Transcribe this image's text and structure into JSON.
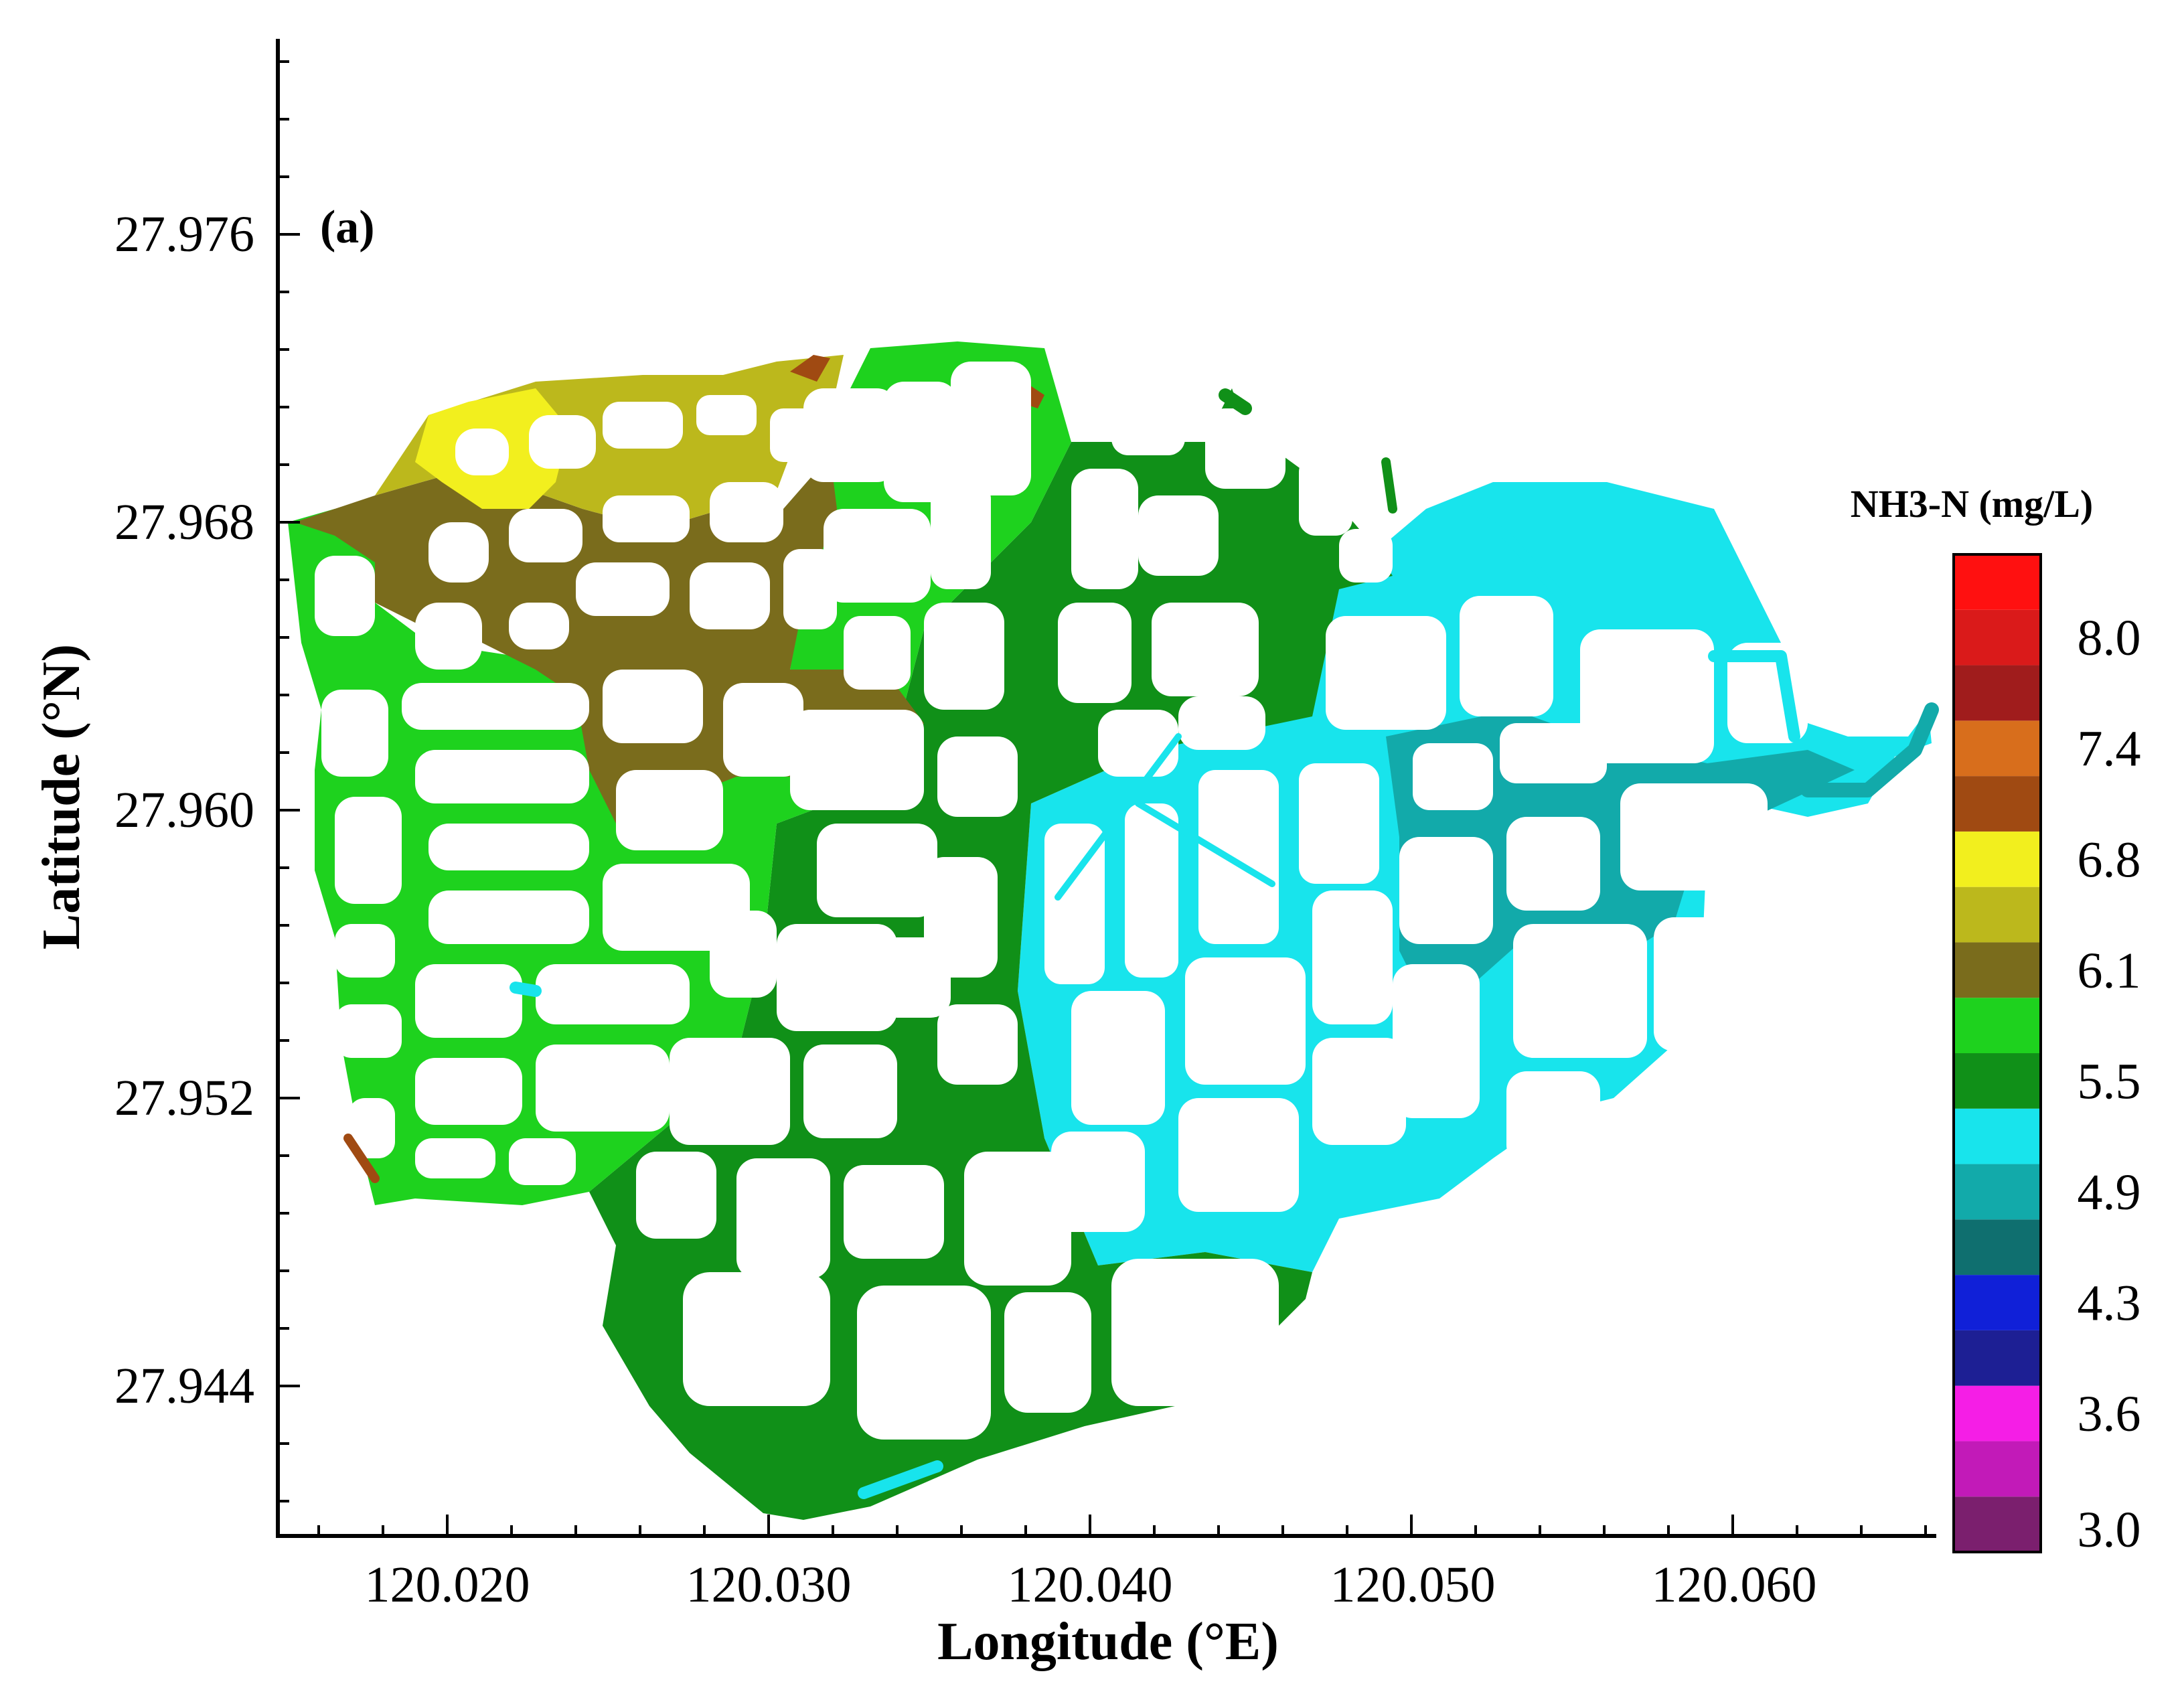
{
  "panel_label": "(a)",
  "x_axis": {
    "title": "Longitude (°E)",
    "range": [
      120.0145,
      120.0665
    ],
    "ticks": [
      "120.020",
      "120.030",
      "120.040",
      "120.050",
      "120.060"
    ],
    "tick_values": [
      120.02,
      120.03,
      120.04,
      120.05,
      120.06
    ]
  },
  "y_axis": {
    "title": "Latitude (°N)",
    "range": [
      27.9395,
      27.979
    ],
    "ticks": [
      "27.944",
      "27.952",
      "27.960",
      "27.968",
      "27.976"
    ],
    "tick_values": [
      27.944,
      27.952,
      27.96,
      27.968,
      27.976
    ]
  },
  "legend": {
    "title": "NH3-N (mg/L)",
    "bands": [
      {
        "color": "#7b1f6e"
      },
      {
        "color": "#c21ab8"
      },
      {
        "color": "#f51ee6"
      },
      {
        "color": "#1d1f94"
      },
      {
        "color": "#1020d8"
      },
      {
        "color": "#0f6f6f"
      },
      {
        "color": "#12aaaa"
      },
      {
        "color": "#18e4ec"
      },
      {
        "color": "#109018"
      },
      {
        "color": "#1ed21e"
      },
      {
        "color": "#7a6c1c"
      },
      {
        "color": "#bcb81c"
      },
      {
        "color": "#f2ef1e"
      },
      {
        "color": "#a04a12"
      },
      {
        "color": "#d86e1c"
      },
      {
        "color": "#a01c1c"
      },
      {
        "color": "#da1a1a"
      },
      {
        "color": "#ff1010"
      }
    ],
    "labels": [
      "3.0",
      "3.6",
      "4.3",
      "4.9",
      "5.5",
      "6.1",
      "6.8",
      "7.4",
      "8.0"
    ]
  },
  "map_zones": [
    {
      "concentration": "6.8",
      "color": "#f2ef1e"
    },
    {
      "concentration": "6.4",
      "color": "#bcb81c"
    },
    {
      "concentration": "6.1",
      "color": "#7a6c1c"
    },
    {
      "concentration": "5.7",
      "color": "#1ed21e"
    },
    {
      "concentration": "5.3",
      "color": "#109018"
    },
    {
      "concentration": "5.0",
      "color": "#18e4ec"
    },
    {
      "concentration": "4.7",
      "color": "#12aaaa"
    },
    {
      "concentration": "7.0",
      "color": "#a04a12"
    }
  ]
}
